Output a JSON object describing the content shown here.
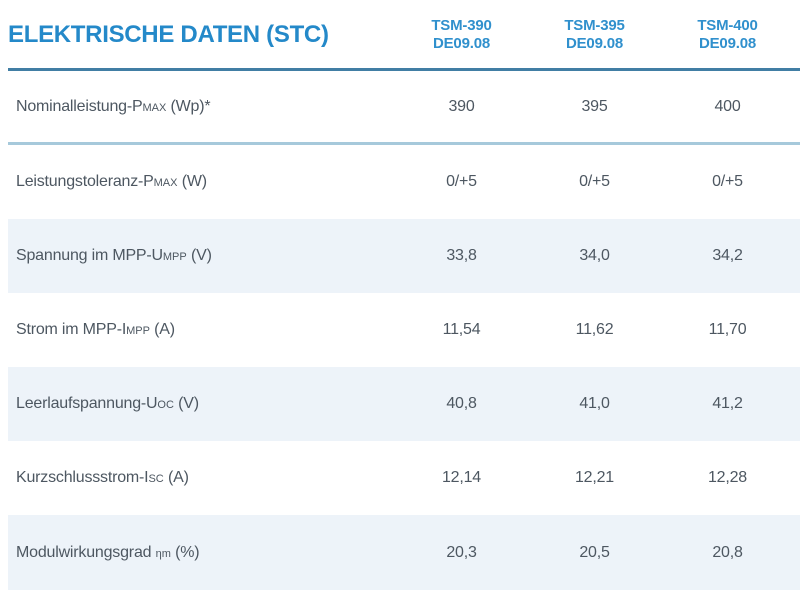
{
  "title": "ELEKTRISCHE DATEN (STC)",
  "columns": [
    {
      "model": "TSM-390",
      "revision": "DE09.08"
    },
    {
      "model": "TSM-395",
      "revision": "DE09.08"
    },
    {
      "model": "TSM-400",
      "revision": "DE09.08"
    }
  ],
  "rows": [
    {
      "label": {
        "pre": "Nominalleistung-P",
        "small": "MAX",
        "post": " (Wp)*"
      },
      "values": [
        "390",
        "395",
        "400"
      ],
      "shaded": false,
      "separator": true
    },
    {
      "label": {
        "pre": "Leistungstoleranz-P",
        "small": "MAX",
        "post": " (W)"
      },
      "values": [
        "0/+5",
        "0/+5",
        "0/+5"
      ],
      "shaded": false,
      "separator": false
    },
    {
      "label": {
        "pre": "Spannung im MPP-U",
        "small": "MPP",
        "post": " (V)"
      },
      "values": [
        "33,8",
        "34,0",
        "34,2"
      ],
      "shaded": true,
      "separator": false
    },
    {
      "label": {
        "pre": "Strom im MPP-I",
        "small": "MPP",
        "post": " (A)"
      },
      "values": [
        "11,54",
        "11,62",
        "11,70"
      ],
      "shaded": false,
      "separator": false
    },
    {
      "label": {
        "pre": "Leerlaufspannung-U",
        "small": "OC",
        "post": " (V)"
      },
      "values": [
        "40,8",
        "41,0",
        "41,2"
      ],
      "shaded": true,
      "separator": false
    },
    {
      "label": {
        "pre": "Kurzschlussstrom-I",
        "small": "SC",
        "post": " (A)"
      },
      "values": [
        "12,14",
        "12,21",
        "12,28"
      ],
      "shaded": false,
      "separator": false
    },
    {
      "label": {
        "pre": "Modulwirkungsgrad ",
        "small": "ηm",
        "post": " (%)"
      },
      "values": [
        "20,3",
        "20,5",
        "20,8"
      ],
      "shaded": true,
      "separator": false
    }
  ],
  "colors": {
    "title_blue": "#2489c9",
    "header_blue": "#3090cd",
    "header_underline": "#417ea4",
    "row_separator": "#a6c9db",
    "shaded_row_bg": "#edf3f9",
    "text": "#4d5761"
  },
  "chart_data": {
    "type": "table",
    "title": "ELEKTRISCHE DATEN (STC)",
    "columns": [
      "TSM-390 DE09.08",
      "TSM-395 DE09.08",
      "TSM-400 DE09.08"
    ],
    "rows": [
      {
        "label": "Nominalleistung-PMAX (Wp)*",
        "values": [
          390,
          395,
          400
        ]
      },
      {
        "label": "Leistungstoleranz-PMAX (W)",
        "values": [
          "0/+5",
          "0/+5",
          "0/+5"
        ]
      },
      {
        "label": "Spannung im MPP-UMPP (V)",
        "values": [
          "33,8",
          "34,0",
          "34,2"
        ]
      },
      {
        "label": "Strom im MPP-IMPP (A)",
        "values": [
          "11,54",
          "11,62",
          "11,70"
        ]
      },
      {
        "label": "Leerlaufspannung-UOC (V)",
        "values": [
          "40,8",
          "41,0",
          "41,2"
        ]
      },
      {
        "label": "Kurzschlussstrom-ISC (A)",
        "values": [
          "12,14",
          "12,21",
          "12,28"
        ]
      },
      {
        "label": "Modulwirkungsgrad ηm (%)",
        "values": [
          "20,3",
          "20,5",
          "20,8"
        ]
      }
    ]
  }
}
